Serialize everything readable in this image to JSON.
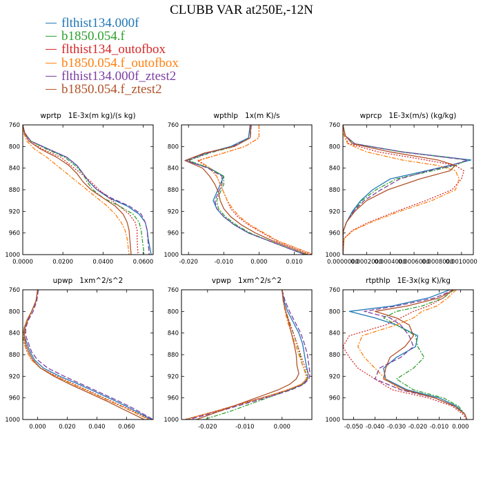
{
  "title": "CLUBB VAR at250E,-12N",
  "legend": [
    {
      "name": "flthist134.000f",
      "color": "#1f77b4",
      "dash": "solid"
    },
    {
      "name": "b1850.054.f",
      "color": "#2ca02c",
      "dash": "dashdot"
    },
    {
      "name": "flthist134_outofbox",
      "color": "#d62728",
      "dash": "dot"
    },
    {
      "name": "b1850.054.f_outofbox",
      "color": "#ff7f0e",
      "dash": "dashdot"
    },
    {
      "name": "flthist134.000f_ztest2",
      "color": "#7b3fa0",
      "dash": "dash"
    },
    {
      "name": "b1850.054.f_ztest2",
      "color": "#b0522a",
      "dash": "solid"
    }
  ],
  "chart_data": [
    {
      "type": "line",
      "title": "wprtp   1E-3x(m kg)/(s kg)",
      "xlim": [
        0.0,
        0.065
      ],
      "xticks": [
        0.0,
        0.02,
        0.04,
        0.06
      ],
      "xtick_labels": [
        "0.0000",
        "0.0200",
        "0.0400",
        "0.0600"
      ],
      "ylim": [
        760,
        1000
      ],
      "yticks": [
        760,
        800,
        840,
        880,
        920,
        960,
        1000
      ],
      "y": [
        760,
        775,
        790,
        805,
        820,
        835,
        850,
        865,
        880,
        895,
        910,
        925,
        940,
        955,
        970,
        985,
        1000
      ],
      "series": [
        {
          "values": [
            0.0,
            0.001,
            0.004,
            0.013,
            0.022,
            0.027,
            0.03,
            0.033,
            0.037,
            0.043,
            0.052,
            0.058,
            0.061,
            0.062,
            0.0625,
            0.0632,
            0.064
          ]
        },
        {
          "values": [
            0.0,
            0.001,
            0.004,
            0.012,
            0.021,
            0.026,
            0.03,
            0.032,
            0.035,
            0.04,
            0.048,
            0.055,
            0.058,
            0.059,
            0.0595,
            0.06,
            0.0605
          ]
        },
        {
          "values": [
            0.0,
            0.001,
            0.003,
            0.01,
            0.019,
            0.024,
            0.029,
            0.034,
            0.038,
            0.043,
            0.048,
            0.053,
            0.056,
            0.057,
            0.057,
            0.0572,
            0.0575
          ]
        },
        {
          "values": [
            0.0,
            0.0005,
            0.002,
            0.006,
            0.012,
            0.017,
            0.022,
            0.027,
            0.032,
            0.037,
            0.042,
            0.046,
            0.049,
            0.051,
            0.052,
            0.0525,
            0.053
          ]
        },
        {
          "values": [
            0.0,
            0.001,
            0.004,
            0.013,
            0.022,
            0.027,
            0.03,
            0.033,
            0.037,
            0.044,
            0.053,
            0.059,
            0.061,
            0.062,
            0.0623,
            0.0627,
            0.063
          ]
        },
        {
          "values": [
            0.0,
            0.0008,
            0.003,
            0.009,
            0.017,
            0.023,
            0.027,
            0.03,
            0.034,
            0.04,
            0.046,
            0.05,
            0.052,
            0.053,
            0.0533,
            0.0537,
            0.054
          ]
        }
      ]
    },
    {
      "type": "line",
      "title": "wpthlp   1x(m K)/s",
      "xlim": [
        -0.022,
        0.015
      ],
      "xticks": [
        -0.02,
        -0.01,
        0.0,
        0.01
      ],
      "xtick_labels": [
        "-0.020",
        "-0.010",
        "0.000",
        "0.010"
      ],
      "ylim": [
        760,
        1000
      ],
      "yticks": [
        760,
        800,
        840,
        880,
        920,
        960,
        1000
      ],
      "y": [
        760,
        784,
        800,
        812,
        826,
        840,
        855,
        870,
        885,
        900,
        915,
        930,
        945,
        960,
        975,
        990,
        1000
      ],
      "series": [
        {
          "values": [
            -0.0025,
            -0.003,
            -0.008,
            -0.015,
            -0.021,
            -0.014,
            -0.01,
            -0.011,
            -0.012,
            -0.013,
            -0.012,
            -0.01,
            -0.007,
            -0.003,
            0.003,
            0.009,
            0.013
          ]
        },
        {
          "values": [
            -0.0022,
            -0.0025,
            -0.007,
            -0.014,
            -0.02,
            -0.014,
            -0.01,
            -0.01,
            -0.011,
            -0.012,
            -0.0115,
            -0.0095,
            -0.0065,
            -0.0025,
            0.003,
            0.009,
            0.0135
          ]
        },
        {
          "values": [
            0.0,
            0.0,
            -0.004,
            -0.01,
            -0.0175,
            -0.014,
            -0.012,
            -0.011,
            -0.01,
            -0.009,
            -0.008,
            -0.006,
            -0.003,
            0.001,
            0.005,
            0.011,
            0.015
          ]
        },
        {
          "values": [
            0.0,
            0.0,
            -0.004,
            -0.01,
            -0.017,
            -0.014,
            -0.012,
            -0.011,
            -0.01,
            -0.009,
            -0.0075,
            -0.0055,
            -0.0025,
            0.0015,
            0.0055,
            0.0115,
            0.0155
          ]
        },
        {
          "values": [
            -0.0022,
            -0.0025,
            -0.0075,
            -0.0145,
            -0.0205,
            -0.0145,
            -0.0105,
            -0.0105,
            -0.0115,
            -0.0125,
            -0.012,
            -0.01,
            -0.007,
            -0.003,
            0.003,
            0.009,
            0.013
          ]
        },
        {
          "values": [
            -0.0025,
            -0.0025,
            -0.007,
            -0.0155,
            -0.021,
            -0.016,
            -0.014,
            -0.0125,
            -0.0115,
            -0.011,
            -0.01,
            -0.008,
            -0.005,
            -0.001,
            0.004,
            0.01,
            0.014
          ]
        }
      ]
    },
    {
      "type": "line",
      "title": "wprcp   1E-3x(m/s) (kg/kg)",
      "xlim": [
        0.0,
        0.0011
      ],
      "xticks": [
        0.0,
        0.0002,
        0.0004,
        0.0006,
        0.0008,
        0.001
      ],
      "xtick_labels": [
        "0.0000000",
        "0.0002000",
        "0.0004000",
        "0.0006000",
        "0.0008000",
        "0.0010000"
      ],
      "ylim": [
        760,
        1000
      ],
      "yticks": [
        760,
        800,
        840,
        880,
        920,
        960,
        1000
      ],
      "y": [
        760,
        780,
        795,
        810,
        825,
        835,
        845,
        860,
        880,
        900,
        920,
        940,
        955,
        970,
        1000
      ],
      "series": [
        {
          "values": [
            0.0,
            2e-05,
            0.0001,
            0.0005,
            0.00108,
            0.0009,
            0.0007,
            0.0004,
            0.00025,
            0.00015,
            8e-05,
            3e-05,
            5e-06,
            0.0,
            0.0
          ]
        },
        {
          "values": [
            0.0,
            2e-05,
            0.0001,
            0.0005,
            0.00105,
            0.00095,
            0.00075,
            0.00045,
            0.00028,
            0.00016,
            9e-05,
            3e-05,
            5e-06,
            0.0,
            0.0
          ]
        },
        {
          "values": [
            0.0,
            1e-05,
            5e-05,
            0.0003,
            0.0007,
            0.00095,
            0.00102,
            0.001,
            0.00092,
            0.0007,
            0.00045,
            0.00022,
            8e-05,
            1e-05,
            0.0
          ]
        },
        {
          "values": [
            0.0,
            1e-05,
            4e-05,
            0.0002,
            0.0005,
            0.0008,
            0.00095,
            0.00098,
            0.00095,
            0.00075,
            0.00048,
            0.00024,
            9e-05,
            1e-05,
            0.0
          ]
        },
        {
          "values": [
            0.0,
            2e-05,
            0.0001,
            0.0005,
            0.00105,
            0.00092,
            0.00072,
            0.00048,
            0.00032,
            0.00018,
            9e-05,
            3e-05,
            5e-06,
            0.0,
            0.0
          ]
        },
        {
          "values": [
            0.0,
            2e-05,
            8e-05,
            0.0004,
            0.0008,
            0.00095,
            0.0009,
            0.00065,
            0.00038,
            0.0002,
            0.0001,
            3e-05,
            5e-06,
            0.0,
            0.0
          ]
        }
      ]
    },
    {
      "type": "line",
      "title": "upwp   1xm^2/s^2",
      "xlim": [
        -0.01,
        0.078
      ],
      "xticks": [
        0.0,
        0.02,
        0.04,
        0.06
      ],
      "xtick_labels": [
        "0.000",
        "0.020",
        "0.040",
        "0.060"
      ],
      "ylim": [
        760,
        1000
      ],
      "yticks": [
        760,
        800,
        840,
        880,
        920,
        960,
        1000
      ],
      "y": [
        760,
        780,
        800,
        815,
        830,
        845,
        860,
        875,
        890,
        905,
        920,
        935,
        950,
        965,
        980,
        1000
      ],
      "series": [
        {
          "values": [
            0.0,
            -0.001,
            -0.004,
            -0.007,
            -0.009,
            -0.009,
            -0.007,
            -0.005,
            -0.002,
            0.004,
            0.015,
            0.028,
            0.04,
            0.052,
            0.063,
            0.077
          ]
        },
        {
          "values": [
            0.0,
            -0.001,
            -0.004,
            -0.007,
            -0.009,
            -0.01,
            -0.009,
            -0.007,
            -0.004,
            0.002,
            0.012,
            0.024,
            0.036,
            0.048,
            0.06,
            0.075
          ]
        },
        {
          "values": [
            0.0,
            -0.001,
            -0.004,
            -0.007,
            -0.0085,
            -0.009,
            -0.0085,
            -0.007,
            -0.004,
            0.002,
            0.013,
            0.025,
            0.037,
            0.049,
            0.061,
            0.076
          ]
        },
        {
          "values": [
            0.0,
            -0.001,
            -0.004,
            -0.007,
            -0.009,
            -0.0095,
            -0.009,
            -0.007,
            -0.004,
            0.002,
            0.012,
            0.024,
            0.036,
            0.048,
            0.06,
            0.075
          ]
        },
        {
          "values": [
            0.0005,
            -0.0005,
            -0.003,
            -0.006,
            -0.008,
            -0.008,
            -0.006,
            -0.004,
            0.0,
            0.007,
            0.018,
            0.03,
            0.042,
            0.054,
            0.065,
            0.078
          ]
        },
        {
          "values": [
            0.0,
            -0.001,
            -0.004,
            -0.0065,
            -0.0085,
            -0.009,
            -0.008,
            -0.006,
            -0.003,
            0.002,
            0.011,
            0.022,
            0.034,
            0.046,
            0.057,
            0.072
          ]
        }
      ]
    },
    {
      "type": "line",
      "title": "vpwp   1xm^2/s^2",
      "xlim": [
        -0.027,
        0.008
      ],
      "xticks": [
        -0.02,
        -0.01,
        0.0
      ],
      "xtick_labels": [
        "-0.020",
        "-0.010",
        "0.000"
      ],
      "ylim": [
        760,
        1000
      ],
      "yticks": [
        760,
        800,
        840,
        880,
        920,
        960,
        1000
      ],
      "y": [
        760,
        780,
        800,
        820,
        840,
        860,
        880,
        900,
        915,
        925,
        935,
        945,
        955,
        965,
        975,
        985,
        1000
      ],
      "series": [
        {
          "values": [
            0.0,
            0.0005,
            0.0015,
            0.003,
            0.0045,
            0.0055,
            0.006,
            0.0065,
            0.007,
            0.0068,
            0.0055,
            0.002,
            -0.003,
            -0.008,
            -0.013,
            -0.018,
            -0.026
          ]
        },
        {
          "values": [
            0.0,
            0.0003,
            0.001,
            0.002,
            0.003,
            0.004,
            0.0048,
            0.0055,
            0.0065,
            0.0068,
            0.0055,
            0.002,
            -0.002,
            -0.006,
            -0.01,
            -0.014,
            -0.021
          ]
        },
        {
          "values": [
            0.0,
            0.0003,
            0.001,
            0.002,
            0.003,
            0.004,
            0.005,
            0.006,
            0.007,
            0.0068,
            0.0052,
            0.0015,
            -0.003,
            -0.008,
            -0.013,
            -0.018,
            -0.026
          ]
        },
        {
          "values": [
            0.0,
            0.0003,
            0.0008,
            0.0015,
            0.0025,
            0.0035,
            0.0045,
            0.0055,
            0.0063,
            0.0065,
            0.005,
            0.0015,
            -0.003,
            -0.008,
            -0.013,
            -0.018,
            -0.026
          ]
        },
        {
          "values": [
            0.0,
            0.0008,
            0.002,
            0.0035,
            0.005,
            0.006,
            0.0068,
            0.0072,
            0.0075,
            0.0072,
            0.0058,
            0.0025,
            -0.002,
            -0.007,
            -0.012,
            -0.017,
            -0.025
          ]
        },
        {
          "values": [
            0.0,
            0.0003,
            0.001,
            0.0018,
            0.0025,
            0.0032,
            0.0038,
            0.004,
            0.0045,
            0.0038,
            0.002,
            -0.001,
            -0.005,
            -0.009,
            -0.013,
            -0.017,
            -0.023
          ]
        }
      ]
    },
    {
      "type": "line",
      "title": "rtpthlp   1E-3x(kg K)/kg",
      "xlim": [
        -0.055,
        0.006
      ],
      "xticks": [
        -0.05,
        -0.04,
        -0.03,
        -0.02,
        -0.01,
        0.0
      ],
      "xtick_labels": [
        "-0.050",
        "-0.040",
        "-0.030",
        "-0.020",
        "-0.010",
        "0.000"
      ],
      "ylim": [
        760,
        1000
      ],
      "yticks": [
        760,
        800,
        840,
        880,
        920,
        960,
        1000
      ],
      "y": [
        760,
        775,
        790,
        800,
        812,
        825,
        845,
        865,
        885,
        905,
        925,
        945,
        960,
        975,
        990,
        1000
      ],
      "series": [
        {
          "values": [
            -0.005,
            -0.015,
            -0.032,
            -0.052,
            -0.04,
            -0.03,
            -0.02,
            -0.021,
            -0.03,
            -0.036,
            -0.035,
            -0.025,
            -0.01,
            -0.002,
            0.002,
            0.003
          ]
        },
        {
          "values": [
            -0.003,
            -0.008,
            -0.018,
            -0.03,
            -0.036,
            -0.03,
            -0.021,
            -0.02,
            -0.017,
            -0.022,
            -0.03,
            -0.022,
            -0.008,
            -0.001,
            0.002,
            0.003
          ]
        },
        {
          "values": [
            -0.004,
            -0.008,
            -0.015,
            -0.022,
            -0.028,
            -0.035,
            -0.052,
            -0.055,
            -0.052,
            -0.048,
            -0.04,
            -0.032,
            -0.015,
            -0.004,
            0.001,
            0.003
          ]
        },
        {
          "values": [
            -0.002,
            -0.006,
            -0.011,
            -0.018,
            -0.022,
            -0.03,
            -0.046,
            -0.048,
            -0.045,
            -0.04,
            -0.035,
            -0.028,
            -0.012,
            -0.003,
            0.002,
            0.003
          ]
        },
        {
          "values": [
            -0.003,
            -0.012,
            -0.03,
            -0.045,
            -0.033,
            -0.028,
            -0.024,
            -0.022,
            -0.028,
            -0.038,
            -0.04,
            -0.028,
            -0.012,
            -0.003,
            0.002,
            0.003
          ]
        },
        {
          "values": [
            -0.003,
            -0.01,
            -0.025,
            -0.04,
            -0.03,
            -0.024,
            -0.022,
            -0.026,
            -0.033,
            -0.035,
            -0.036,
            -0.026,
            -0.012,
            -0.003,
            0.002,
            0.003
          ]
        }
      ]
    }
  ]
}
